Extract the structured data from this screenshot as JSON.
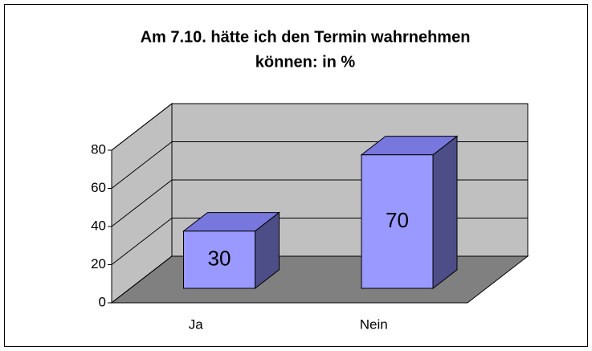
{
  "chart_data": {
    "type": "bar3d",
    "title": "Am 7.10. hätte ich den Termin wahrnehmen",
    "subtitle": "können: in %",
    "categories": [
      "Ja",
      "Nein"
    ],
    "values": [
      30,
      70
    ],
    "color": "#9999ff",
    "ylim": [
      0,
      80
    ],
    "yticks": [
      0,
      20,
      40,
      60,
      80
    ],
    "grid": true
  }
}
